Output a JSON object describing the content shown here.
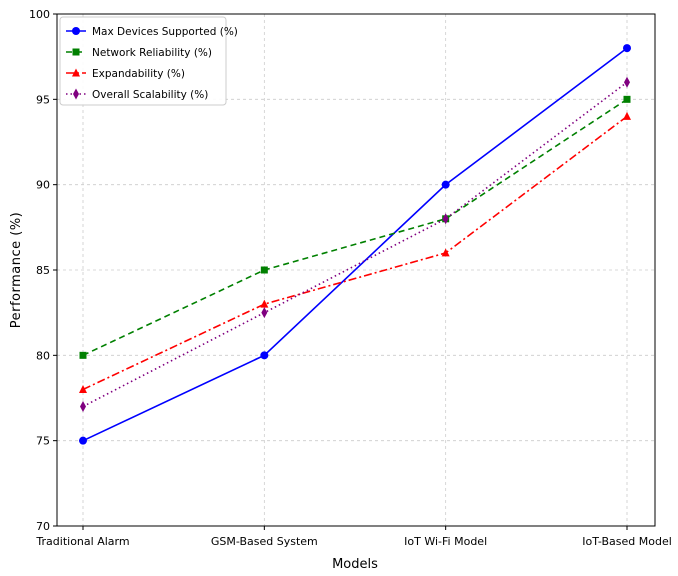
{
  "chart_data": {
    "type": "line",
    "title": "",
    "xlabel": "Models",
    "ylabel": "Performance (%)",
    "categories": [
      "Traditional Alarm",
      "GSM-Based System",
      "IoT Wi-Fi Model",
      "IoT-Based Model"
    ],
    "ylim": [
      70,
      100
    ],
    "yticks": [
      70,
      75,
      80,
      85,
      90,
      95,
      100
    ],
    "grid": true,
    "legend_position": "top-left",
    "series": [
      {
        "name": "Max Devices Supported (%)",
        "values": [
          75,
          80,
          90,
          98
        ],
        "color": "#0000ff",
        "line_style": "solid",
        "marker": "circle"
      },
      {
        "name": "Network Reliability (%)",
        "values": [
          80,
          85,
          88,
          95
        ],
        "color": "#008000",
        "line_style": "dashed",
        "marker": "square"
      },
      {
        "name": "Expandability (%)",
        "values": [
          78,
          83,
          86,
          94
        ],
        "color": "#ff0000",
        "line_style": "dashdot",
        "marker": "triangle"
      },
      {
        "name": "Overall Scalability (%)",
        "values": [
          77,
          82.5,
          88,
          96
        ],
        "color": "#800080",
        "line_style": "dotted",
        "marker": "diamond"
      }
    ]
  }
}
